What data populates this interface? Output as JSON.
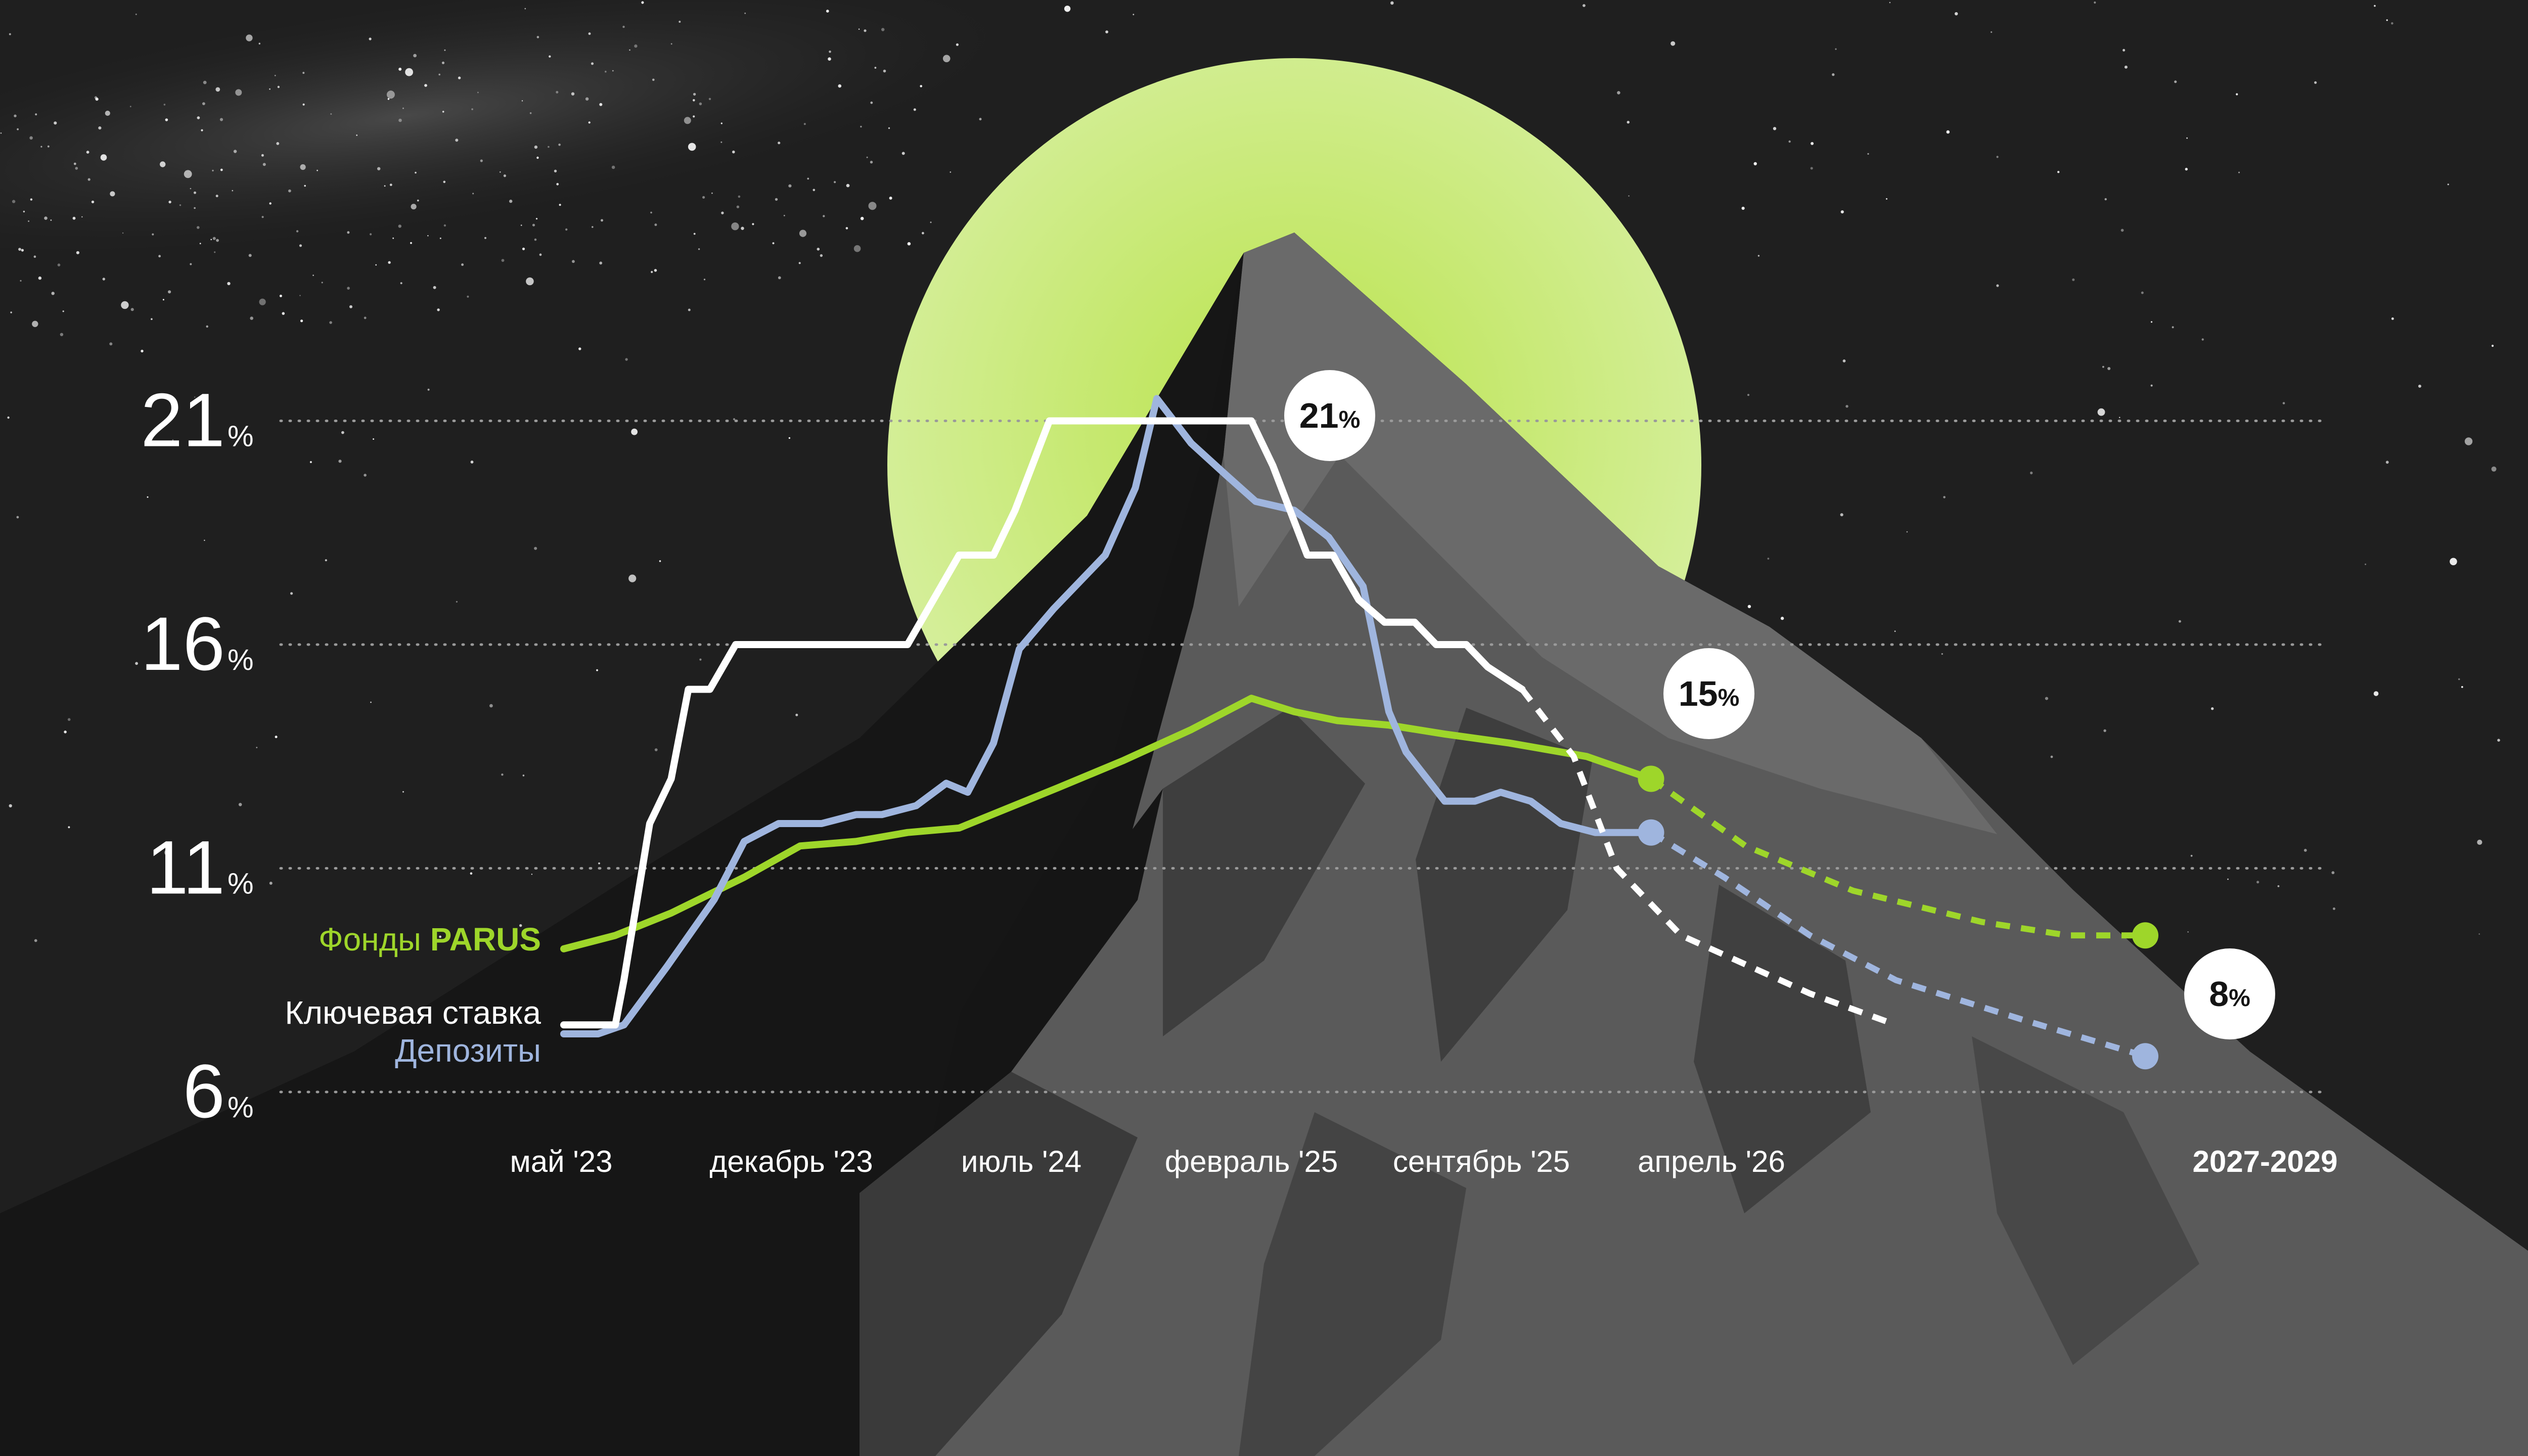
{
  "colors": {
    "background": "#1f1f1f",
    "sun": "#c6ea6b",
    "parus": "#9ed62a",
    "key_rate": "#ffffff",
    "deposits": "#9fb5de",
    "gridline": "#9a9a9a",
    "bubble_fill": "#ffffff"
  },
  "legend": {
    "parus_prefix": "Фонды",
    "parus_brand": "PARUS",
    "key_rate": "Ключевая ставка",
    "deposits": "Депозиты"
  },
  "bubbles": [
    {
      "value": "21",
      "unit": "%"
    },
    {
      "value": "15",
      "unit": "%"
    },
    {
      "value": "8",
      "unit": "%"
    }
  ],
  "chart_data": {
    "type": "line",
    "y_ticks": [
      {
        "value": 21,
        "label": "21",
        "unit": "%"
      },
      {
        "value": 16,
        "label": "16",
        "unit": "%"
      },
      {
        "value": 11,
        "label": "11",
        "unit": "%"
      },
      {
        "value": 6,
        "label": "6",
        "unit": "%"
      }
    ],
    "ylim": [
      6,
      21
    ],
    "grid": true,
    "x_ticks": [
      "май '23",
      "декабрь '23",
      "июль '24",
      "февраль '25",
      "сентябрь '25",
      "апрель '26",
      "2027-2029"
    ],
    "series": [
      {
        "name": "Ключевая ставка",
        "solid": [
          [
            0.0,
            7.5
          ],
          [
            1.2,
            7.5
          ],
          [
            1.4,
            8.5
          ],
          [
            2.0,
            12.0
          ],
          [
            2.5,
            13.0
          ],
          [
            2.9,
            15.0
          ],
          [
            3.4,
            15.0
          ],
          [
            4.0,
            16.0
          ],
          [
            8.0,
            16.0
          ],
          [
            9.2,
            18.0
          ],
          [
            10.0,
            18.0
          ],
          [
            10.5,
            19.0
          ],
          [
            11.3,
            21.0
          ],
          [
            15.0,
            21.0
          ],
          [
            16.0,
            21.0
          ],
          [
            16.5,
            20.0
          ],
          [
            17.3,
            18.0
          ],
          [
            17.9,
            18.0
          ],
          [
            18.5,
            17.0
          ],
          [
            19.1,
            16.5
          ],
          [
            19.8,
            16.5
          ],
          [
            20.3,
            16.0
          ],
          [
            21.0,
            16.0
          ],
          [
            21.5,
            15.5
          ],
          [
            22.3,
            15.0
          ]
        ],
        "forecast": [
          [
            22.3,
            15.0
          ],
          [
            23.5,
            13.5
          ],
          [
            24.5,
            11.0
          ],
          [
            26.0,
            9.5
          ],
          [
            29.0,
            8.2
          ],
          [
            31.0,
            7.5
          ]
        ]
      },
      {
        "name": "Депозиты",
        "solid": [
          [
            0.0,
            7.3
          ],
          [
            0.8,
            7.3
          ],
          [
            1.4,
            7.5
          ],
          [
            2.4,
            8.8
          ],
          [
            3.5,
            10.3
          ],
          [
            4.2,
            11.6
          ],
          [
            5.0,
            12.0
          ],
          [
            6.0,
            12.0
          ],
          [
            6.8,
            12.2
          ],
          [
            7.4,
            12.2
          ],
          [
            8.2,
            12.4
          ],
          [
            8.9,
            12.9
          ],
          [
            9.4,
            12.7
          ],
          [
            10.0,
            13.8
          ],
          [
            10.6,
            15.9
          ],
          [
            11.4,
            16.8
          ],
          [
            12.6,
            18.0
          ],
          [
            13.3,
            19.5
          ],
          [
            13.8,
            21.5
          ],
          [
            14.6,
            20.5
          ],
          [
            15.4,
            19.8
          ],
          [
            16.1,
            19.2
          ],
          [
            17.0,
            19.0
          ],
          [
            17.8,
            18.4
          ],
          [
            18.6,
            17.3
          ],
          [
            19.2,
            14.5
          ],
          [
            19.6,
            13.6
          ],
          [
            20.5,
            12.5
          ],
          [
            21.2,
            12.5
          ],
          [
            21.8,
            12.7
          ],
          [
            22.5,
            12.5
          ],
          [
            23.2,
            12.0
          ],
          [
            24.0,
            11.8
          ],
          [
            25.0,
            11.8
          ],
          [
            25.3,
            11.8
          ]
        ],
        "forecast": [
          [
            25.3,
            11.8
          ],
          [
            27.0,
            10.8
          ],
          [
            29.0,
            9.5
          ],
          [
            31.0,
            8.5
          ],
          [
            34.0,
            7.6
          ],
          [
            36.8,
            6.8
          ]
        ]
      },
      {
        "name": "Фонды PARUS",
        "solid": [
          [
            0.0,
            9.2
          ],
          [
            1.2,
            9.5
          ],
          [
            2.5,
            10.0
          ],
          [
            4.2,
            10.8
          ],
          [
            5.5,
            11.5
          ],
          [
            6.8,
            11.6
          ],
          [
            8.0,
            11.8
          ],
          [
            9.2,
            11.9
          ],
          [
            11.5,
            12.8
          ],
          [
            13.0,
            13.4
          ],
          [
            14.6,
            14.1
          ],
          [
            16.0,
            14.8
          ],
          [
            17.0,
            14.5
          ],
          [
            18.0,
            14.3
          ],
          [
            19.2,
            14.2
          ],
          [
            20.5,
            14.0
          ],
          [
            22.0,
            13.8
          ],
          [
            23.8,
            13.5
          ],
          [
            25.3,
            13.0
          ]
        ],
        "forecast": [
          [
            25.3,
            13.0
          ],
          [
            27.5,
            11.5
          ],
          [
            30.0,
            10.5
          ],
          [
            33.0,
            9.8
          ],
          [
            35.0,
            9.5
          ],
          [
            36.8,
            9.5
          ]
        ]
      }
    ]
  }
}
